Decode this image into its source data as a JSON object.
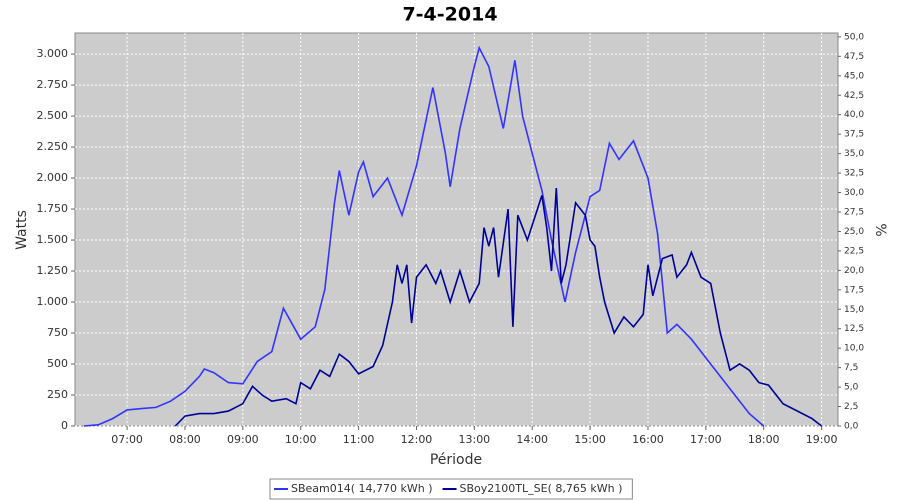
{
  "chart_data": {
    "type": "line",
    "title": "7-4-2014",
    "x_label": "Période",
    "y_label": "Watts",
    "y2_label": "%",
    "xlim": [
      "06:06",
      "19:17"
    ],
    "xticks": [
      "07:00",
      "08:00",
      "09:00",
      "10:00",
      "11:00",
      "12:00",
      "13:00",
      "14:00",
      "15:00",
      "16:00",
      "17:00",
      "18:00",
      "19:00"
    ],
    "ylim": [
      0,
      3170
    ],
    "yticks": [
      0,
      {
        "value": 250,
        "label": "250"
      },
      {
        "value": 500,
        "label": "500"
      },
      {
        "value": 750,
        "label": "750"
      },
      {
        "value": 1000,
        "label": "1.000"
      },
      {
        "value": 1250,
        "label": "1.250"
      },
      {
        "value": 1500,
        "label": "1.500"
      },
      {
        "value": 1750,
        "label": "1.750"
      },
      {
        "value": 2000,
        "label": "2.000"
      },
      {
        "value": 2250,
        "label": "2.250"
      },
      {
        "value": 2500,
        "label": "2.500"
      },
      {
        "value": 2750,
        "label": "2.750"
      },
      {
        "value": 3000,
        "label": "3.000"
      }
    ],
    "y2lim": [
      0,
      50.5
    ],
    "y2ticks": [
      {
        "value": 0,
        "label": "0,0"
      },
      {
        "value": 2.5,
        "label": "2,5"
      },
      {
        "value": 5,
        "label": "5,0"
      },
      {
        "value": 7.5,
        "label": "7,5"
      },
      {
        "value": 10,
        "label": "10,0"
      },
      {
        "value": 12.5,
        "label": "12,5"
      },
      {
        "value": 15,
        "label": "15,0"
      },
      {
        "value": 17.5,
        "label": "17,5"
      },
      {
        "value": 20,
        "label": "20,0"
      },
      {
        "value": 22.5,
        "label": "22,5"
      },
      {
        "value": 25,
        "label": "25,0"
      },
      {
        "value": 27.5,
        "label": "27,5"
      },
      {
        "value": 30,
        "label": "30,0"
      },
      {
        "value": 32.5,
        "label": "32,5"
      },
      {
        "value": 35,
        "label": "35,0"
      },
      {
        "value": 37.5,
        "label": "37,5"
      },
      {
        "value": 40,
        "label": "40,0"
      },
      {
        "value": 42.5,
        "label": "42,5"
      },
      {
        "value": 45,
        "label": "45,0"
      },
      {
        "value": 47.5,
        "label": "47,5"
      },
      {
        "value": 50,
        "label": "50,0"
      }
    ],
    "grid": true,
    "series": [
      {
        "name": "SBeam014( 14,770 kWh )",
        "color": "#3333ff",
        "x": [
          "06:15",
          "06:30",
          "06:45",
          "07:00",
          "07:15",
          "07:30",
          "07:45",
          "08:00",
          "08:15",
          "08:20",
          "08:30",
          "08:45",
          "09:00",
          "09:15",
          "09:30",
          "09:42",
          "10:00",
          "10:15",
          "10:25",
          "10:35",
          "10:40",
          "10:50",
          "11:00",
          "11:05",
          "11:15",
          "11:30",
          "11:45",
          "12:00",
          "12:17",
          "12:30",
          "12:35",
          "12:45",
          "13:00",
          "13:05",
          "13:15",
          "13:30",
          "13:42",
          "13:50",
          "14:00",
          "14:10",
          "14:20",
          "14:34",
          "14:45",
          "15:00",
          "15:10",
          "15:20",
          "15:30",
          "15:45",
          "16:00",
          "16:10",
          "16:20",
          "16:30",
          "16:45",
          "17:00",
          "17:15",
          "17:30",
          "17:45",
          "18:00"
        ],
        "values": [
          0,
          10,
          60,
          130,
          140,
          150,
          200,
          280,
          400,
          460,
          430,
          350,
          340,
          520,
          600,
          950,
          700,
          800,
          1100,
          1800,
          2060,
          1700,
          2050,
          2130,
          1850,
          2000,
          1700,
          2100,
          2730,
          2200,
          1930,
          2400,
          2900,
          3050,
          2900,
          2400,
          2950,
          2500,
          2200,
          1900,
          1500,
          1000,
          1400,
          1850,
          1900,
          2280,
          2150,
          2300,
          2000,
          1550,
          750,
          820,
          700,
          550,
          400,
          250,
          100,
          0
        ]
      },
      {
        "name": "SBoy2100TL_SE( 8,765 kWh )",
        "color": "#000099",
        "x": [
          "07:50",
          "08:00",
          "08:15",
          "08:30",
          "08:45",
          "09:00",
          "09:10",
          "09:20",
          "09:30",
          "09:45",
          "09:55",
          "10:00",
          "10:10",
          "10:20",
          "10:30",
          "10:40",
          "10:50",
          "11:00",
          "11:15",
          "11:25",
          "11:35",
          "11:40",
          "11:45",
          "11:50",
          "11:55",
          "12:00",
          "12:10",
          "12:20",
          "12:25",
          "12:35",
          "12:45",
          "12:55",
          "13:05",
          "13:10",
          "13:15",
          "13:20",
          "13:25",
          "13:35",
          "13:40",
          "13:45",
          "13:55",
          "14:10",
          "14:15",
          "14:20",
          "14:25",
          "14:30",
          "14:35",
          "14:45",
          "14:55",
          "15:00",
          "15:05",
          "15:10",
          "15:15",
          "15:25",
          "15:35",
          "15:45",
          "15:55",
          "16:00",
          "16:05",
          "16:15",
          "16:25",
          "16:30",
          "16:40",
          "16:45",
          "16:55",
          "17:05",
          "17:15",
          "17:25",
          "17:35",
          "17:45",
          "17:55",
          "18:05",
          "18:20",
          "18:35",
          "18:50",
          "19:00"
        ],
        "values": [
          0,
          80,
          100,
          100,
          120,
          180,
          320,
          250,
          200,
          220,
          180,
          350,
          300,
          450,
          400,
          580,
          520,
          420,
          480,
          650,
          1000,
          1300,
          1150,
          1300,
          830,
          1200,
          1300,
          1150,
          1250,
          1000,
          1250,
          1000,
          1150,
          1600,
          1450,
          1600,
          1200,
          1750,
          800,
          1700,
          1500,
          1860,
          1600,
          1250,
          1920,
          1150,
          1300,
          1800,
          1700,
          1500,
          1450,
          1200,
          1000,
          750,
          880,
          800,
          900,
          1300,
          1050,
          1350,
          1380,
          1200,
          1300,
          1400,
          1200,
          1150,
          750,
          450,
          500,
          450,
          350,
          330,
          180,
          120,
          60,
          0
        ]
      }
    ]
  }
}
